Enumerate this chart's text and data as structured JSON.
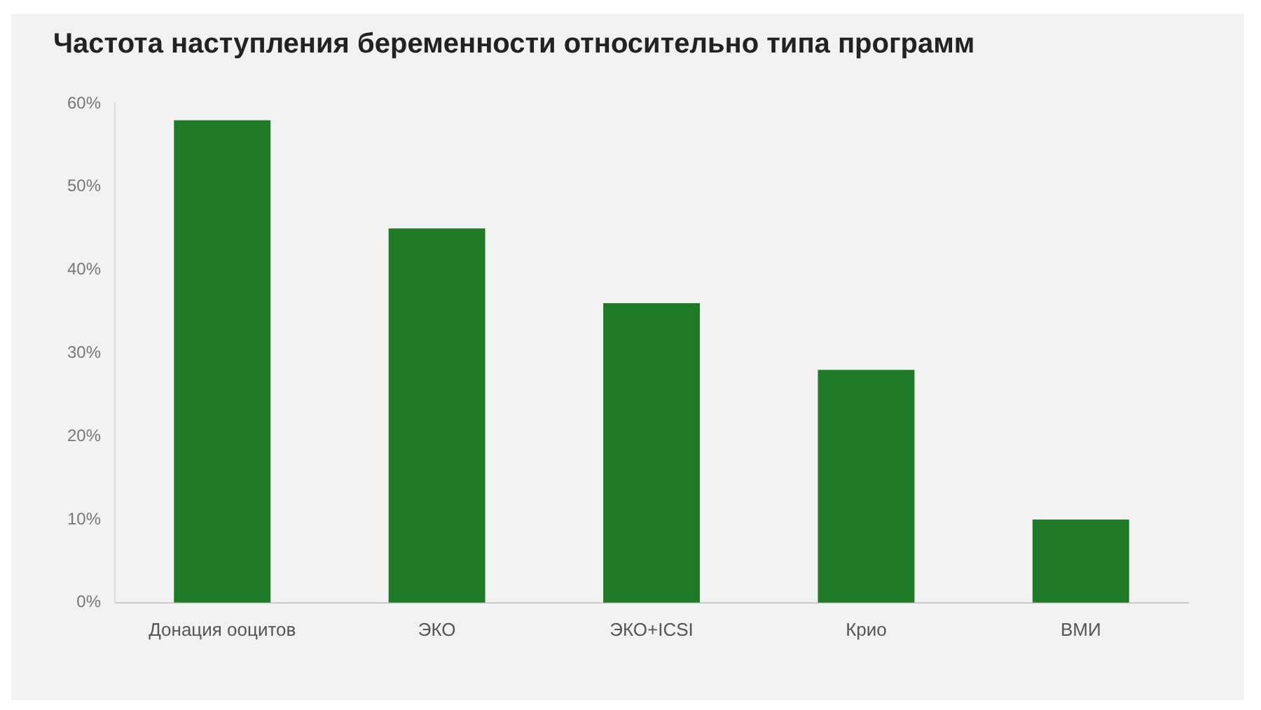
{
  "chart_data": {
    "type": "bar",
    "title": "Частота наступления беременности относительно типа программ",
    "categories": [
      "Донация ооцитов",
      "ЭКО",
      "ЭКО+ICSI",
      "Крио",
      "ВМИ"
    ],
    "values": [
      58,
      45,
      36,
      28,
      10
    ],
    "color": "#1e7a26",
    "ylim": [
      0,
      60
    ],
    "yticks": [
      {
        "value": 0,
        "label": "0%"
      },
      {
        "value": 10,
        "label": "10%"
      },
      {
        "value": 20,
        "label": "20%"
      },
      {
        "value": 30,
        "label": "30%"
      },
      {
        "value": 40,
        "label": "40%"
      },
      {
        "value": 50,
        "label": "50%"
      },
      {
        "value": 60,
        "label": "60%"
      }
    ],
    "grid": false,
    "legend": false
  }
}
